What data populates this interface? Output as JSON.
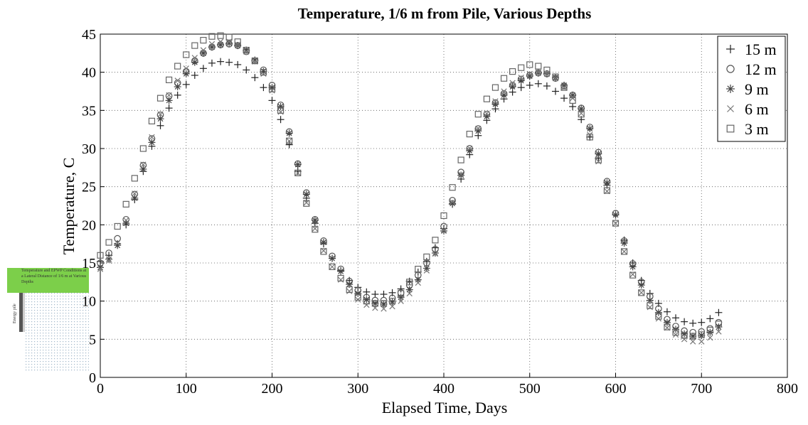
{
  "chart_data": {
    "type": "scatter",
    "title": "Temperature, 1/6 m from Pile, Various Depths",
    "x_label": "Elapsed Time, Days",
    "y_label": "Temperature, C",
    "x": [
      0,
      10,
      20,
      30,
      40,
      50,
      60,
      70,
      80,
      90,
      100,
      110,
      120,
      130,
      140,
      150,
      160,
      170,
      180,
      190,
      200,
      210,
      220,
      230,
      240,
      250,
      260,
      270,
      280,
      290,
      300,
      310,
      320,
      330,
      340,
      350,
      360,
      370,
      380,
      390,
      400,
      410,
      420,
      430,
      440,
      450,
      460,
      470,
      480,
      490,
      500,
      510,
      520,
      530,
      540,
      550,
      560,
      570,
      580,
      590,
      600,
      610,
      620,
      630,
      640,
      650,
      660,
      670,
      680,
      690,
      700,
      710,
      720
    ],
    "series": [
      {
        "name": "15 m",
        "marker": "plus",
        "color": "#222222",
        "values": [
          15.2,
          16.0,
          17.5,
          20.0,
          23.3,
          27.0,
          30.3,
          33.0,
          35.3,
          37.0,
          38.4,
          39.6,
          40.5,
          41.2,
          41.4,
          41.3,
          41.0,
          40.3,
          39.3,
          38.0,
          36.3,
          33.8,
          30.5,
          27.0,
          23.5,
          20.2,
          17.5,
          15.6,
          14.0,
          12.7,
          11.8,
          11.2,
          10.9,
          10.9,
          11.1,
          11.6,
          12.6,
          13.8,
          15.2,
          17.0,
          19.5,
          22.7,
          26.0,
          29.2,
          31.7,
          33.7,
          35.2,
          36.5,
          37.4,
          38.0,
          38.3,
          38.5,
          38.2,
          37.5,
          36.6,
          35.5,
          33.8,
          31.5,
          28.7,
          25.2,
          21.3,
          18.0,
          15.0,
          12.7,
          11.0,
          9.7,
          8.6,
          7.8,
          7.3,
          7.1,
          7.2,
          7.7,
          8.5
        ]
      },
      {
        "name": "12 m",
        "marker": "circle",
        "color": "#555555",
        "values": [
          15.0,
          16.3,
          18.2,
          20.7,
          24.0,
          27.8,
          31.3,
          34.4,
          36.9,
          38.6,
          40.1,
          41.5,
          42.5,
          43.3,
          43.6,
          43.7,
          43.5,
          42.7,
          41.5,
          40.3,
          38.3,
          35.7,
          32.2,
          28.0,
          24.2,
          20.7,
          17.9,
          15.9,
          14.2,
          12.6,
          11.4,
          10.5,
          10.1,
          10.1,
          10.4,
          11.1,
          12.1,
          13.4,
          15.0,
          16.8,
          19.8,
          23.2,
          26.9,
          30.0,
          32.6,
          34.5,
          36.0,
          37.2,
          38.3,
          39.1,
          39.6,
          39.9,
          39.8,
          39.2,
          38.2,
          37.0,
          35.3,
          32.8,
          29.5,
          25.7,
          21.5,
          17.9,
          14.9,
          12.5,
          10.6,
          9.0,
          7.6,
          6.7,
          6.1,
          5.9,
          6.0,
          6.4,
          7.2
        ]
      },
      {
        "name": "9 m",
        "marker": "asterisk",
        "color": "#444444",
        "values": [
          14.4,
          15.5,
          17.3,
          20.2,
          23.5,
          27.3,
          30.8,
          33.9,
          36.3,
          38.1,
          39.8,
          41.3,
          42.5,
          43.3,
          43.6,
          43.8,
          43.5,
          42.9,
          41.6,
          40.1,
          38.0,
          35.5,
          32.0,
          27.9,
          24.0,
          20.6,
          17.7,
          15.6,
          13.9,
          12.2,
          11.0,
          10.2,
          9.7,
          9.6,
          9.9,
          10.5,
          11.5,
          12.8,
          14.3,
          16.3,
          19.2,
          22.8,
          26.5,
          29.7,
          32.3,
          34.2,
          35.8,
          37.0,
          38.1,
          38.9,
          39.5,
          39.9,
          39.8,
          39.3,
          38.3,
          37.0,
          35.2,
          32.6,
          29.3,
          25.5,
          21.3,
          17.6,
          14.5,
          12.1,
          10.1,
          8.5,
          7.2,
          6.3,
          5.7,
          5.4,
          5.5,
          5.9,
          6.6
        ]
      },
      {
        "name": "6 m",
        "marker": "cross",
        "color": "#777777",
        "values": [
          14.2,
          15.3,
          17.6,
          20.6,
          24.1,
          27.9,
          31.5,
          34.5,
          37.0,
          38.9,
          40.5,
          41.9,
          42.9,
          43.7,
          44.0,
          44.0,
          43.6,
          42.7,
          41.4,
          39.8,
          37.6,
          34.8,
          31.0,
          26.8,
          22.9,
          19.5,
          16.6,
          14.5,
          12.8,
          11.3,
          10.2,
          9.5,
          9.1,
          9.0,
          9.3,
          10.0,
          11.0,
          12.4,
          14.0,
          16.2,
          19.3,
          23.0,
          26.6,
          30.0,
          32.6,
          34.6,
          36.2,
          37.5,
          38.6,
          39.3,
          39.8,
          40.0,
          39.8,
          39.2,
          38.0,
          36.6,
          34.6,
          31.8,
          28.3,
          24.4,
          20.2,
          16.5,
          13.5,
          11.1,
          9.2,
          7.7,
          6.5,
          5.6,
          5.0,
          4.7,
          4.7,
          5.2,
          6.0
        ]
      },
      {
        "name": "3 m",
        "marker": "square",
        "color": "#666666",
        "values": [
          16.0,
          17.7,
          19.8,
          22.7,
          26.1,
          30.0,
          33.6,
          36.6,
          39.0,
          40.8,
          42.3,
          43.5,
          44.2,
          44.7,
          44.8,
          44.6,
          44.0,
          42.9,
          41.5,
          40.0,
          37.8,
          35.0,
          31.0,
          26.8,
          22.8,
          19.4,
          16.5,
          14.5,
          13.0,
          11.5,
          10.5,
          10.0,
          9.7,
          9.7,
          10.0,
          11.0,
          12.5,
          14.2,
          15.8,
          18.0,
          21.2,
          24.9,
          28.5,
          31.9,
          34.5,
          36.5,
          38.0,
          39.2,
          40.1,
          40.6,
          41.0,
          40.8,
          40.3,
          39.4,
          38.0,
          36.3,
          34.5,
          31.5,
          28.5,
          24.5,
          20.2,
          16.5,
          13.4,
          11.1,
          9.4,
          8.0,
          6.6,
          5.9,
          5.5,
          5.4,
          5.6,
          6.2,
          7.0
        ]
      }
    ],
    "xlim": [
      0,
      800
    ],
    "xticks": [
      0,
      100,
      200,
      300,
      400,
      500,
      600,
      700,
      800
    ],
    "ylim": [
      0,
      45
    ],
    "yticks": [
      0,
      5,
      10,
      15,
      20,
      25,
      30,
      35,
      40,
      45
    ],
    "grid": true,
    "legend": "upper right"
  },
  "inset": {
    "caption": "Temperature and EPWP Conditions at a Lateral Distance of 1/6 m at Various Depths",
    "pile_label": "Energy pile"
  }
}
